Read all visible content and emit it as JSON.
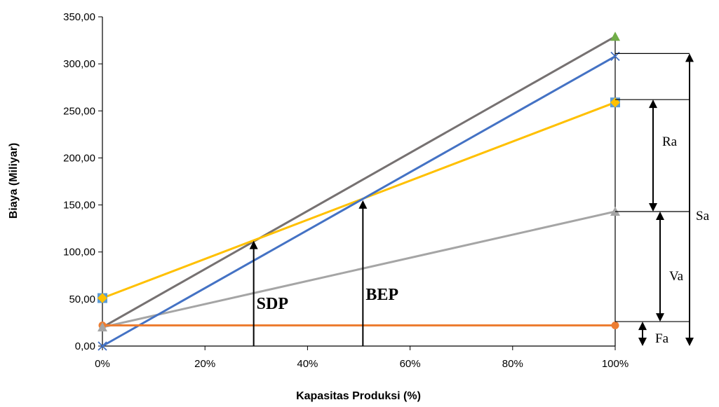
{
  "chart_data": {
    "type": "line",
    "xlabel": "Kapasitas Produksi (%)",
    "ylabel": "Biaya (Miliyar)",
    "x": [
      0,
      100
    ],
    "xlim": [
      0,
      100
    ],
    "ylim": [
      0,
      350
    ],
    "x_ticks": [
      "0%",
      "20%",
      "40%",
      "60%",
      "80%",
      "100%"
    ],
    "x_tick_values": [
      0,
      20,
      40,
      60,
      80,
      100
    ],
    "y_ticks": [
      "0,00",
      "50,00",
      "100,00",
      "150,00",
      "200,00",
      "250,00",
      "300,00",
      "350,00"
    ],
    "y_tick_values": [
      0,
      50,
      100,
      150,
      200,
      250,
      300,
      350
    ],
    "grid": false,
    "legend": "none",
    "series": [
      {
        "values": [
          22,
          22
        ],
        "color": "#ED7D31",
        "marker": "circle"
      },
      {
        "values": [
          0,
          308
        ],
        "color": "#4472C4",
        "marker": "x"
      },
      {
        "values": [
          51,
          259
        ],
        "color": "#FFC000",
        "marker": "diamond"
      },
      {
        "values": [
          20,
          143
        ],
        "color": "#A5A5A5",
        "marker": "triangle"
      },
      {
        "values": [
          20,
          329
        ],
        "color": "#767171",
        "marker": "none"
      }
    ],
    "extra_markers": [
      {
        "x": 0,
        "y": 51,
        "color": "#5B9BD5",
        "shape": "square"
      },
      {
        "x": 100,
        "y": 259,
        "color": "#5B9BD5",
        "shape": "square"
      },
      {
        "x": 100,
        "y": 329,
        "color": "#70AD47",
        "shape": "triangle"
      }
    ],
    "annotations": [
      {
        "text": "SDP",
        "x": 29.5,
        "y": 112
      },
      {
        "text": "BEP",
        "x": 50.8,
        "y": 155
      }
    ],
    "brackets": [
      {
        "label": "Ra",
        "from": 143,
        "to": 262
      },
      {
        "label": "Va",
        "from": 26,
        "to": 143
      },
      {
        "label": "Fa",
        "from": 0,
        "to": 26
      },
      {
        "label": "Sa",
        "from": 0,
        "to": 311
      }
    ]
  }
}
